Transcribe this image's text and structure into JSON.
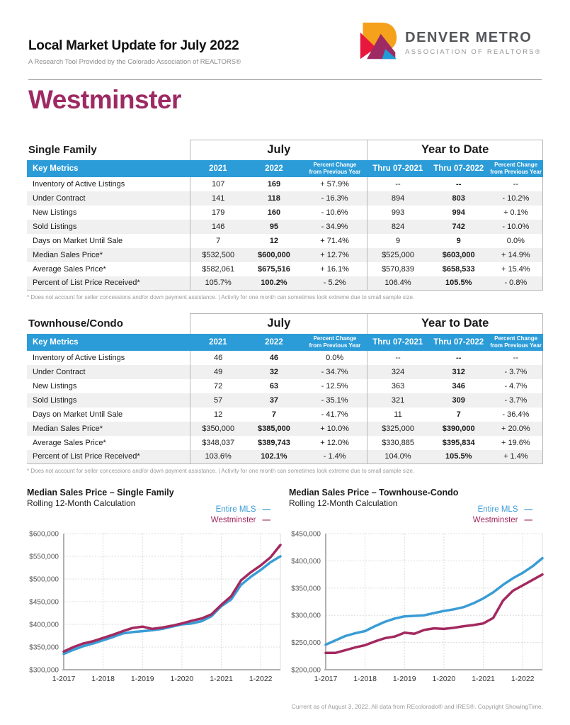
{
  "header": {
    "title": "Local Market Update for July 2022",
    "subtitle": "A Research Tool Provided by the Colorado Association of REALTORS®",
    "logo": {
      "line1": "DENVER METRO",
      "line2": "ASSOCIATION OF REALTORS®"
    }
  },
  "region": "Westminster",
  "colors": {
    "region_title": "#9E2A63",
    "table_header_bg": "#2B9CD8",
    "line_blue": "#3A9CD5",
    "line_magenta": "#A3295F"
  },
  "tables": [
    {
      "section": "Single Family",
      "period_headers": [
        "July",
        "Year to Date"
      ],
      "columns": [
        "Key Metrics",
        "2021",
        "2022",
        "Percent Change\nfrom Previous Year",
        "Thru 07-2021",
        "Thru 07-2022",
        "Percent Change\nfrom Previous Year"
      ],
      "rows": [
        {
          "metric": "Inventory of Active Listings",
          "values": [
            "107",
            "169",
            "+ 57.9%",
            "--",
            "--",
            "--"
          ]
        },
        {
          "metric": "Under Contract",
          "values": [
            "141",
            "118",
            "- 16.3%",
            "894",
            "803",
            "- 10.2%"
          ]
        },
        {
          "metric": "New Listings",
          "values": [
            "179",
            "160",
            "- 10.6%",
            "993",
            "994",
            "+ 0.1%"
          ]
        },
        {
          "metric": "Sold Listings",
          "values": [
            "146",
            "95",
            "- 34.9%",
            "824",
            "742",
            "- 10.0%"
          ]
        },
        {
          "metric": "Days on Market Until Sale",
          "values": [
            "7",
            "12",
            "+ 71.4%",
            "9",
            "9",
            "0.0%"
          ]
        },
        {
          "metric": "Median Sales Price*",
          "values": [
            "$532,500",
            "$600,000",
            "+ 12.7%",
            "$525,000",
            "$603,000",
            "+ 14.9%"
          ]
        },
        {
          "metric": "Average Sales Price*",
          "values": [
            "$582,061",
            "$675,516",
            "+ 16.1%",
            "$570,839",
            "$658,533",
            "+ 15.4%"
          ]
        },
        {
          "metric": "Percent of List Price Received*",
          "values": [
            "105.7%",
            "100.2%",
            "- 5.2%",
            "106.4%",
            "105.5%",
            "- 0.8%"
          ]
        }
      ]
    },
    {
      "section": "Townhouse/Condo",
      "period_headers": [
        "July",
        "Year to Date"
      ],
      "columns": [
        "Key Metrics",
        "2021",
        "2022",
        "Percent Change\nfrom Previous Year",
        "Thru 07-2021",
        "Thru 07-2022",
        "Percent Change\nfrom Previous Year"
      ],
      "rows": [
        {
          "metric": "Inventory of Active Listings",
          "values": [
            "46",
            "46",
            "0.0%",
            "--",
            "--",
            "--"
          ]
        },
        {
          "metric": "Under Contract",
          "values": [
            "49",
            "32",
            "- 34.7%",
            "324",
            "312",
            "- 3.7%"
          ]
        },
        {
          "metric": "New Listings",
          "values": [
            "72",
            "63",
            "- 12.5%",
            "363",
            "346",
            "- 4.7%"
          ]
        },
        {
          "metric": "Sold Listings",
          "values": [
            "57",
            "37",
            "- 35.1%",
            "321",
            "309",
            "- 3.7%"
          ]
        },
        {
          "metric": "Days on Market Until Sale",
          "values": [
            "12",
            "7",
            "- 41.7%",
            "11",
            "7",
            "- 36.4%"
          ]
        },
        {
          "metric": "Median Sales Price*",
          "values": [
            "$350,000",
            "$385,000",
            "+ 10.0%",
            "$325,000",
            "$390,000",
            "+ 20.0%"
          ]
        },
        {
          "metric": "Average Sales Price*",
          "values": [
            "$348,037",
            "$389,743",
            "+ 12.0%",
            "$330,885",
            "$395,834",
            "+ 19.6%"
          ]
        },
        {
          "metric": "Percent of List Price Received*",
          "values": [
            "103.6%",
            "102.1%",
            "- 1.4%",
            "104.0%",
            "105.5%",
            "+ 1.4%"
          ]
        }
      ]
    }
  ],
  "table_footnote": "* Does not account for seller concessions and/or down payment assistance.  |  Activity for one month can sometimes look extreme due to small sample size.",
  "chart_data": [
    {
      "type": "line",
      "title": "Median Sales Price – Single Family",
      "subtitle": "Rolling 12-Month Calculation",
      "x": [
        "1-2017",
        "4-2017",
        "7-2017",
        "10-2017",
        "1-2018",
        "4-2018",
        "7-2018",
        "10-2018",
        "1-2019",
        "4-2019",
        "7-2019",
        "10-2019",
        "1-2020",
        "4-2020",
        "7-2020",
        "10-2020",
        "1-2021",
        "4-2021",
        "7-2021",
        "10-2021",
        "1-2022",
        "4-2022",
        "7-2022"
      ],
      "x_tick_labels": [
        "1-2017",
        "1-2018",
        "1-2019",
        "1-2020",
        "1-2021",
        "1-2022"
      ],
      "ylim": [
        300000,
        600000
      ],
      "ytick_step": 50000,
      "grid": true,
      "legend_position": "top-right",
      "series": [
        {
          "name": "Entire MLS",
          "color": "#3A9CD5",
          "values": [
            335000,
            344000,
            352000,
            358000,
            365000,
            372000,
            380000,
            383000,
            385000,
            387000,
            390000,
            395000,
            400000,
            402000,
            407000,
            418000,
            440000,
            455000,
            487000,
            505000,
            520000,
            537000,
            550000
          ]
        },
        {
          "name": "Westminster",
          "color": "#A3295F",
          "values": [
            340000,
            350000,
            358000,
            363000,
            370000,
            377000,
            385000,
            392000,
            395000,
            390000,
            393000,
            397000,
            402000,
            408000,
            413000,
            422000,
            443000,
            462000,
            497000,
            515000,
            530000,
            548000,
            575000
          ]
        }
      ]
    },
    {
      "type": "line",
      "title": "Median Sales Price – Townhouse-Condo",
      "subtitle": "Rolling 12-Month Calculation",
      "x": [
        "1-2017",
        "4-2017",
        "7-2017",
        "10-2017",
        "1-2018",
        "4-2018",
        "7-2018",
        "10-2018",
        "1-2019",
        "4-2019",
        "7-2019",
        "10-2019",
        "1-2020",
        "4-2020",
        "7-2020",
        "10-2020",
        "1-2021",
        "4-2021",
        "7-2021",
        "10-2021",
        "1-2022",
        "4-2022",
        "7-2022"
      ],
      "x_tick_labels": [
        "1-2017",
        "1-2018",
        "1-2019",
        "1-2020",
        "1-2021",
        "1-2022"
      ],
      "ylim": [
        200000,
        450000
      ],
      "ytick_step": 50000,
      "grid": true,
      "legend_position": "top-right",
      "series": [
        {
          "name": "Entire MLS",
          "color": "#3A9CD5",
          "values": [
            246000,
            254000,
            262000,
            267000,
            271000,
            280000,
            288000,
            294000,
            298000,
            299000,
            300000,
            304000,
            308000,
            311000,
            315000,
            322000,
            331000,
            342000,
            356000,
            368000,
            378000,
            390000,
            405000
          ]
        },
        {
          "name": "Westminster",
          "color": "#A3295F",
          "values": [
            231000,
            231000,
            236000,
            241000,
            245000,
            252000,
            258000,
            261000,
            268000,
            266000,
            273000,
            276000,
            275000,
            277000,
            280000,
            282000,
            285000,
            295000,
            327000,
            345000,
            355000,
            365000,
            375000
          ]
        }
      ]
    }
  ],
  "footer": "Current as of August 3, 2022. All data from REcolorado® and IRES®. Copyright ShowingTime."
}
